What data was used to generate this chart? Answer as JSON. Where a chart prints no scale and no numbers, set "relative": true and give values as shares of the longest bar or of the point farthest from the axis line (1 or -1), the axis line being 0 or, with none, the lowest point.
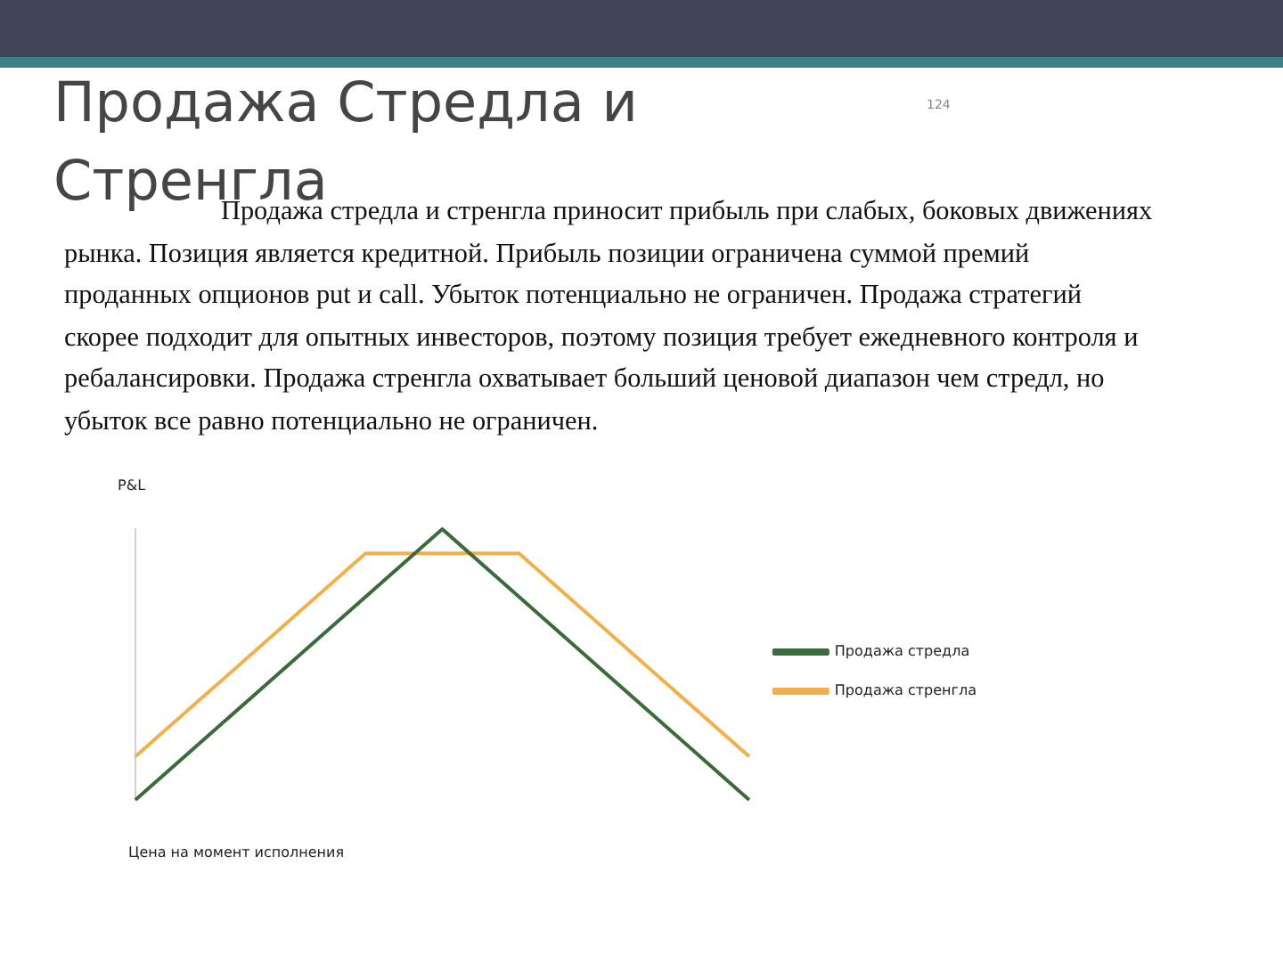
{
  "chart_data": {
    "type": "line",
    "title": "Продажа Стредла и Стренгла",
    "subtitle": "Продажа стредла и стренгла приносит прибыль при слабых, боковых движениях рынка. Позиция является кредитной. Прибыль позиции ограничена суммой премий проданных опционов put и call. Убыток потенциально не ограничен. Продажа стратегий скорее подходит для опытных инвесторов, поэтому позиция требует ежедневного контроля и ребалансировки. Продажа стренгла охватывает больший ценовой диапазон чем стредл, но убыток все равно потенциально не ограничен.",
    "xlabel": "Цена на момент исполнения",
    "ylabel": "P&L",
    "annotations": [
      "124"
    ],
    "relative": true,
    "categories": [
      null,
      null,
      null,
      null,
      null,
      null,
      null,
      null,
      null
    ],
    "series": [
      {
        "name": "Продажа стредла",
        "color": "#3b6b3a",
        "values": [
          0,
          0.25,
          0.5,
          0.75,
          1,
          0.75,
          0.5,
          0.25,
          0
        ]
      },
      {
        "name": "Продажа стренгла",
        "color": "#f0b04c",
        "values": [
          0.16,
          0.41,
          0.66,
          0.91,
          0.91,
          0.91,
          0.66,
          0.41,
          0.16
        ]
      }
    ],
    "legend": "right",
    "marker": "none",
    "line_style": "solid"
  }
}
